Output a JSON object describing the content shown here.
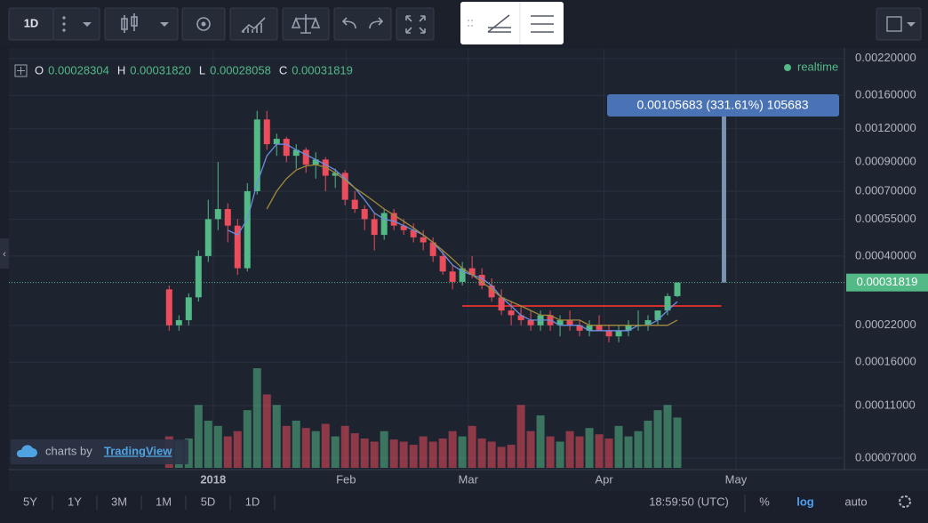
{
  "toolbar": {
    "interval": "1D"
  },
  "chart_data": {
    "type": "candlestick",
    "log_scale": true,
    "grid": true,
    "status": "realtime",
    "header": {
      "labels": [
        "O",
        "H",
        "L",
        "C"
      ],
      "value_labels": [
        "0.00028304",
        "0.00031820",
        "0.00028058",
        "0.00031819"
      ]
    },
    "up_color": "#53b987",
    "down_color": "#eb4d5c",
    "candles": {
      "open": [
        0.0003,
        0.00022,
        0.00023,
        0.00028,
        0.0004,
        0.00055,
        0.0006,
        0.00052,
        0.00036,
        0.0007,
        0.0013,
        0.00105,
        0.0011,
        0.00095,
        0.001,
        0.00088,
        0.00092,
        0.0008,
        0.00082,
        0.00065,
        0.0006,
        0.00055,
        0.00048,
        0.00058,
        0.00052,
        0.0005,
        0.00047,
        0.00045,
        0.0004,
        0.00035,
        0.00032,
        0.00036,
        0.00034,
        0.00031,
        0.00028,
        0.00025,
        0.00024,
        0.00023,
        0.00022,
        0.00024,
        0.00022,
        0.00023,
        0.00022,
        0.00021,
        0.00022,
        0.00021,
        0.0002,
        0.00021,
        0.00022,
        0.00022,
        0.00023,
        0.00025,
        0.00028304
      ],
      "high": [
        0.00031,
        0.00024,
        0.00029,
        0.00042,
        0.00065,
        0.0009,
        0.00063,
        0.00055,
        0.00075,
        0.0014,
        0.0014,
        0.00115,
        0.00112,
        0.00105,
        0.00102,
        0.00098,
        0.00094,
        0.00085,
        0.00084,
        0.0007,
        0.00062,
        0.00058,
        0.0006,
        0.0006,
        0.00055,
        0.00053,
        0.0005,
        0.00047,
        0.00042,
        0.00037,
        0.00038,
        0.0004,
        0.00036,
        0.00033,
        0.0003,
        0.00027,
        0.00026,
        0.00025,
        0.00025,
        0.00025,
        0.00024,
        0.00025,
        0.00023,
        0.00023,
        0.00024,
        0.00022,
        0.00022,
        0.00023,
        0.00025,
        0.00024,
        0.00025,
        0.00029,
        0.0003182
      ],
      "low": [
        0.00021,
        0.00021,
        0.00022,
        0.00027,
        0.00038,
        0.0005,
        0.00045,
        0.00034,
        0.00035,
        0.00068,
        0.001,
        0.00095,
        0.0009,
        0.00085,
        0.00082,
        0.00078,
        0.0007,
        0.00072,
        0.00062,
        0.00058,
        0.0005,
        0.00042,
        0.00046,
        0.0005,
        0.00048,
        0.00045,
        0.00042,
        0.00038,
        0.00034,
        0.0003,
        0.00031,
        0.00033,
        0.0003,
        0.00027,
        0.00024,
        0.00022,
        0.00022,
        0.00021,
        0.00021,
        0.00021,
        0.0002,
        0.00021,
        0.0002,
        0.0002,
        0.00021,
        0.00019,
        0.00019,
        0.0002,
        0.00021,
        0.00021,
        0.00022,
        0.00024,
        0.00028058
      ],
      "close": [
        0.00022,
        0.00023,
        0.00028,
        0.0004,
        0.00055,
        0.0006,
        0.00052,
        0.00036,
        0.0007,
        0.0013,
        0.00105,
        0.0011,
        0.00095,
        0.001,
        0.00088,
        0.00092,
        0.0008,
        0.00082,
        0.00065,
        0.0006,
        0.00055,
        0.00048,
        0.00058,
        0.00052,
        0.0005,
        0.00047,
        0.00045,
        0.0004,
        0.00035,
        0.00032,
        0.00036,
        0.00034,
        0.00031,
        0.00028,
        0.00025,
        0.00024,
        0.00023,
        0.00022,
        0.00024,
        0.00022,
        0.00023,
        0.00022,
        0.00021,
        0.00022,
        0.00021,
        0.0002,
        0.00021,
        0.00022,
        0.00022,
        0.00023,
        0.00025,
        0.00028304,
        0.00031819
      ],
      "volume": [
        30,
        25,
        28,
        60,
        45,
        40,
        30,
        35,
        55,
        95,
        70,
        60,
        40,
        45,
        38,
        35,
        42,
        30,
        40,
        33,
        28,
        25,
        35,
        27,
        25,
        22,
        30,
        25,
        28,
        35,
        30,
        40,
        28,
        25,
        20,
        22,
        60,
        35,
        50,
        30,
        25,
        35,
        30,
        38,
        32,
        28,
        40,
        30,
        35,
        45,
        55,
        60,
        48
      ]
    },
    "series": [
      {
        "color": "#6a8fe0",
        "values": [
          null,
          null,
          null,
          null,
          null,
          null,
          0.0005,
          0.00048,
          0.00055,
          0.00075,
          0.00095,
          0.00105,
          0.00105,
          0.001,
          0.00096,
          0.00092,
          0.00088,
          0.00084,
          0.00078,
          0.00072,
          0.00065,
          0.00058,
          0.00055,
          0.00054,
          0.00052,
          0.0005,
          0.00048,
          0.00045,
          0.00041,
          0.00037,
          0.00035,
          0.00034,
          0.00033,
          0.00031,
          0.00028,
          0.00026,
          0.00024,
          0.00023,
          0.00023,
          0.00023,
          0.00022,
          0.00022,
          0.00022,
          0.00021,
          0.00021,
          0.00021,
          0.00021,
          0.00021,
          0.00022,
          0.00022,
          0.00023,
          0.00025,
          0.00027
        ]
      },
      {
        "color": "#a08a3c",
        "values": [
          null,
          null,
          null,
          null,
          null,
          null,
          null,
          null,
          null,
          null,
          0.0006,
          0.0007,
          0.00078,
          0.00084,
          0.00087,
          0.00088,
          0.00086,
          0.00082,
          0.00077,
          0.00072,
          0.00068,
          0.00064,
          0.0006,
          0.00057,
          0.00054,
          0.00051,
          0.00048,
          0.00045,
          0.00042,
          0.00039,
          0.00036,
          0.00034,
          0.00032,
          0.0003,
          0.00028,
          0.00027,
          0.00026,
          0.00025,
          0.00024,
          0.00024,
          0.00023,
          0.00023,
          0.00023,
          0.00022,
          0.00022,
          0.00022,
          0.00022,
          0.00022,
          0.00022,
          0.00022,
          0.00022,
          0.00022,
          0.00023
        ]
      }
    ],
    "hline": {
      "value": 0.00026,
      "x": [
        30,
        56.5
      ],
      "color": "#d32f2f"
    },
    "measure": {
      "change": 0.00105683,
      "label": "0.00105683 (331.61%) 105683"
    },
    "xlim": [
      -16.4,
      69.1
    ],
    "xticks": [
      {
        "value": 4.5,
        "label": "2018"
      },
      {
        "value": 18.1,
        "label": "Feb"
      },
      {
        "value": 30.6,
        "label": "Mar"
      },
      {
        "value": 44.5,
        "label": "Apr"
      },
      {
        "value": 58,
        "label": "May"
      }
    ],
    "ylim": [
      6.33e-05,
      0.00239
    ],
    "yticks": [
      {
        "value": 0.0022,
        "label": "0.00220000"
      },
      {
        "value": 0.0016,
        "label": "0.00160000"
      },
      {
        "value": 0.0012,
        "label": "0.00120000"
      },
      {
        "value": 0.0009,
        "label": "0.00090000"
      },
      {
        "value": 0.0007,
        "label": "0.00070000"
      },
      {
        "value": 0.00055,
        "label": "0.00055000"
      },
      {
        "value": 0.0004,
        "label": "0.00040000"
      },
      {
        "value": 0.00022,
        "label": "0.00022000"
      },
      {
        "value": 0.00016,
        "label": "0.00016000"
      },
      {
        "value": 0.00011,
        "label": "0.00011000"
      },
      {
        "value": 7e-05,
        "label": "0.00007000"
      }
    ]
  },
  "watermark": {
    "prefix": "charts by",
    "brand": "TradingView"
  },
  "bottom_bar": {
    "ranges": [
      "5Y",
      "1Y",
      "3M",
      "1M",
      "5D",
      "1D"
    ],
    "clock": "18:59:50 (UTC)",
    "percent": "%",
    "log": "log",
    "auto": "auto"
  }
}
